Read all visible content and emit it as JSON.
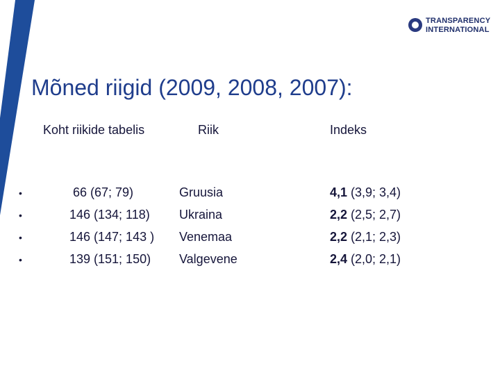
{
  "logo": {
    "line1": "TRANSPARENCY",
    "line2": "INTERNATIONAL"
  },
  "title": "Mõned riigid (2009, 2008, 2007):",
  "table": {
    "headers": [
      "Koht riikide tabelis",
      "Riik",
      "Indeks"
    ],
    "rows": [
      [
        "66 (67; 79)",
        "Gruusia",
        "4,1",
        "(3,9; 3,4)"
      ],
      [
        "146 (134; 118)",
        "Ukraina",
        "2,2",
        "(2,5; 2,7)"
      ],
      [
        "146 (147; 143 )",
        "Venemaa",
        "2,2",
        "(2,1; 2,3)"
      ],
      [
        "139 (151; 150)",
        "Valgevene",
        "2,4",
        "(2,0; 2,1)"
      ]
    ]
  }
}
